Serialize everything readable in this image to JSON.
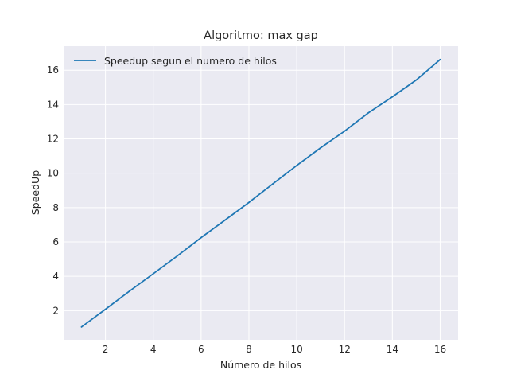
{
  "chart_data": {
    "type": "line",
    "title": "Algoritmo: max gap",
    "xlabel": "Número de hilos",
    "ylabel": "SpeedUp",
    "xlim": [
      0.25,
      16.75
    ],
    "ylim": [
      0.3,
      17.4
    ],
    "xticks": [
      2,
      4,
      6,
      8,
      10,
      12,
      14,
      16
    ],
    "yticks": [
      2,
      4,
      6,
      8,
      10,
      12,
      14,
      16
    ],
    "grid": true,
    "legend_position": "top-left",
    "colors": {
      "background": "#eaeaf2",
      "grid": "#ffffff",
      "line": "#1f77b4"
    },
    "series": [
      {
        "name": "Speedup segun el numero de hilos",
        "x": [
          1,
          2,
          3,
          4,
          5,
          6,
          7,
          8,
          9,
          10,
          11,
          12,
          13,
          14,
          15,
          16
        ],
        "y": [
          1.05,
          2.08,
          3.13,
          4.15,
          5.18,
          6.25,
          7.27,
          8.3,
          9.38,
          10.45,
          11.48,
          12.45,
          13.52,
          14.45,
          15.43,
          16.62
        ]
      }
    ]
  }
}
